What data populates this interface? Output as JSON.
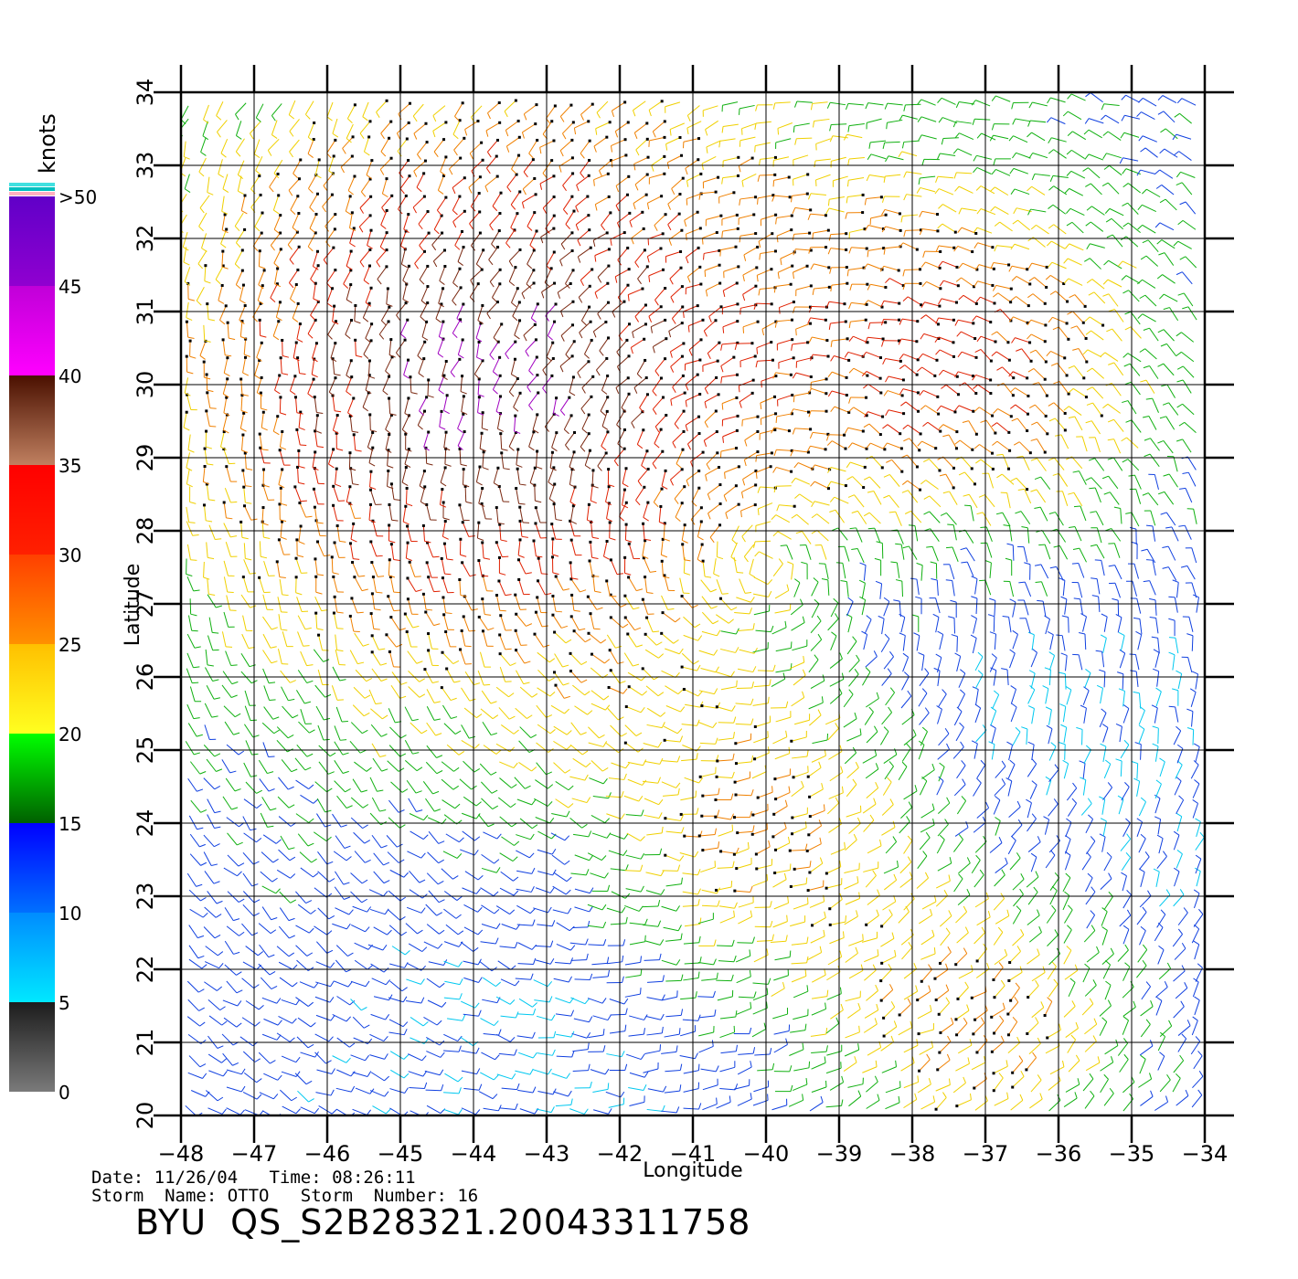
{
  "map": {
    "xlabel": "Longitude",
    "ylabel": "Latitude",
    "lon_range": [
      -48,
      -34
    ],
    "lat_range": [
      20,
      34
    ],
    "lon_ticks": [
      "−48",
      "−47",
      "−46",
      "−45",
      "−44",
      "−43",
      "−42",
      "−41",
      "−40",
      "−39",
      "−38",
      "−37",
      "−36",
      "−35",
      "−34"
    ],
    "lat_ticks": [
      "20",
      "21",
      "22",
      "23",
      "24",
      "25",
      "26",
      "27",
      "28",
      "29",
      "30",
      "31",
      "32",
      "33",
      "34"
    ],
    "grid": true
  },
  "colorbar": {
    "unit": "knots",
    "labels": [
      "0",
      "5",
      "10",
      "15",
      "20",
      "25",
      "30",
      "35",
      "40",
      "45",
      ">50"
    ],
    "bands": [
      {
        "from": 0,
        "to": 5,
        "colors": [
          "#7a7a7a",
          "#1c1c1c"
        ]
      },
      {
        "from": 5,
        "to": 10,
        "colors": [
          "#00e8ff",
          "#008cff"
        ]
      },
      {
        "from": 10,
        "to": 15,
        "colors": [
          "#0070ff",
          "#0000ff"
        ]
      },
      {
        "from": 15,
        "to": 20,
        "colors": [
          "#006000",
          "#00ff00"
        ]
      },
      {
        "from": 20,
        "to": 25,
        "colors": [
          "#ffff20",
          "#ffc000"
        ]
      },
      {
        "from": 25,
        "to": 30,
        "colors": [
          "#ff9000",
          "#ff4000"
        ]
      },
      {
        "from": 30,
        "to": 35,
        "colors": [
          "#ff2000",
          "#ff0000"
        ]
      },
      {
        "from": 35,
        "to": 40,
        "colors": [
          "#c08060",
          "#4a1000"
        ]
      },
      {
        "from": 40,
        "to": 45,
        "colors": [
          "#ff00ff",
          "#c000d8"
        ]
      },
      {
        "from": 45,
        "to": 50,
        "colors": [
          "#9000d0",
          "#6000c8"
        ]
      }
    ],
    "top_swatches": [
      "#ffb0c0",
      "#00c0c0",
      "#40e0e0"
    ]
  },
  "wind_field": {
    "speed_colors": [
      {
        "max": 5,
        "color": "#202020"
      },
      {
        "max": 10,
        "color": "#00c8f0"
      },
      {
        "max": 15,
        "color": "#1040e0"
      },
      {
        "max": 20,
        "color": "#10b010"
      },
      {
        "max": 25,
        "color": "#f0d000"
      },
      {
        "max": 30,
        "color": "#f08000"
      },
      {
        "max": 35,
        "color": "#e02000"
      },
      {
        "max": 40,
        "color": "#7a2810"
      },
      {
        "max": 999,
        "color": "#a000c0"
      }
    ]
  },
  "footer": {
    "line1": "Date: 11/26/04   Time: 08:26:11",
    "line2": "Storm  Name: OTTO   Storm  Number: 16",
    "title": "BYU  QS_S2B28321.20043311758"
  }
}
